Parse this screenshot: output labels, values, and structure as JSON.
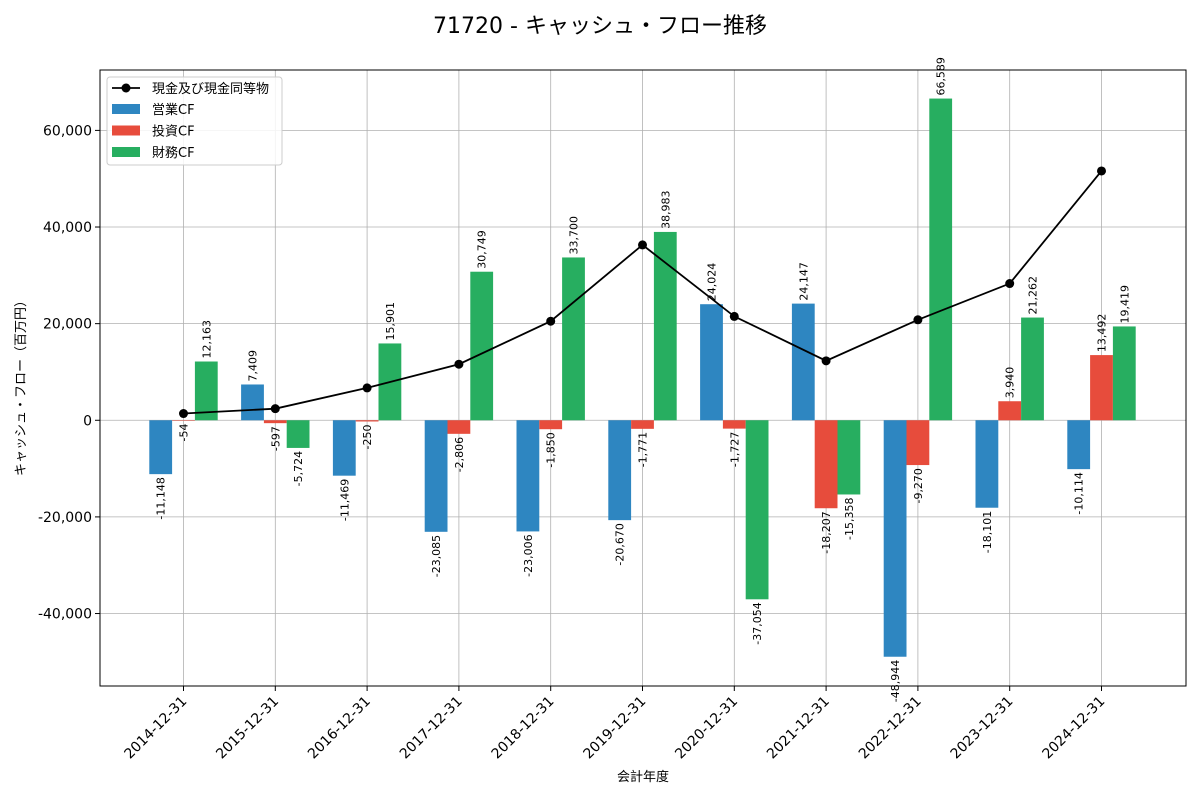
{
  "chart_data": {
    "type": "bar",
    "title": "71720 - キャッシュ・フロー推移",
    "xlabel": "会計年度",
    "ylabel": "キャッシュ・フロー（百万円）",
    "ylim": [
      -55000,
      72500
    ],
    "yticks": [
      -40000,
      -20000,
      0,
      20000,
      40000,
      60000
    ],
    "ytick_labels": [
      "-40,000",
      "-20,000",
      "0",
      "20,000",
      "40,000",
      "60,000"
    ],
    "grid": true,
    "legend_position": "top-left",
    "categories": [
      "2014-12-31",
      "2015-12-31",
      "2016-12-31",
      "2017-12-31",
      "2018-12-31",
      "2019-12-31",
      "2020-12-31",
      "2021-12-31",
      "2022-12-31",
      "2023-12-31",
      "2024-12-31"
    ],
    "series": [
      {
        "name": "営業CF",
        "kind": "bar",
        "color": "#2e86c1",
        "values": [
          -11148,
          7409,
          -11469,
          -23085,
          -23006,
          -20670,
          24024,
          24147,
          -48944,
          -18101,
          -10114
        ],
        "labels": [
          "-11,148",
          "7,409",
          "-11,469",
          "-23,085",
          "-23,006",
          "-20,670",
          "24,024",
          "24,147",
          "-48,944",
          "-18,101",
          "-10,114"
        ]
      },
      {
        "name": "投資CF",
        "kind": "bar",
        "color": "#e74c3c",
        "values": [
          -54,
          -597,
          -250,
          -2806,
          -1850,
          -1771,
          -1727,
          -18207,
          -9270,
          3940,
          13492
        ],
        "labels": [
          "-54",
          "-597",
          "-250",
          "-2,806",
          "-1,850",
          "-1,771",
          "-1,727",
          "-18,207",
          "-9,270",
          "3,940",
          "13,492"
        ]
      },
      {
        "name": "財務CF",
        "kind": "bar",
        "color": "#27ae60",
        "values": [
          12163,
          -5724,
          15901,
          30749,
          33700,
          38983,
          -37054,
          -15358,
          66589,
          21262,
          19419
        ],
        "labels": [
          "12,163",
          "-5,724",
          "15,901",
          "30,749",
          "33,700",
          "38,983",
          "-37,054",
          "-15,358",
          "66,589",
          "21,262",
          "19,419"
        ]
      },
      {
        "name": "現金及び現金同等物",
        "kind": "line",
        "color": "#000000",
        "values": [
          1400,
          2400,
          6700,
          11600,
          20500,
          36300,
          21500,
          12300,
          20800,
          28300,
          51600
        ]
      }
    ]
  }
}
